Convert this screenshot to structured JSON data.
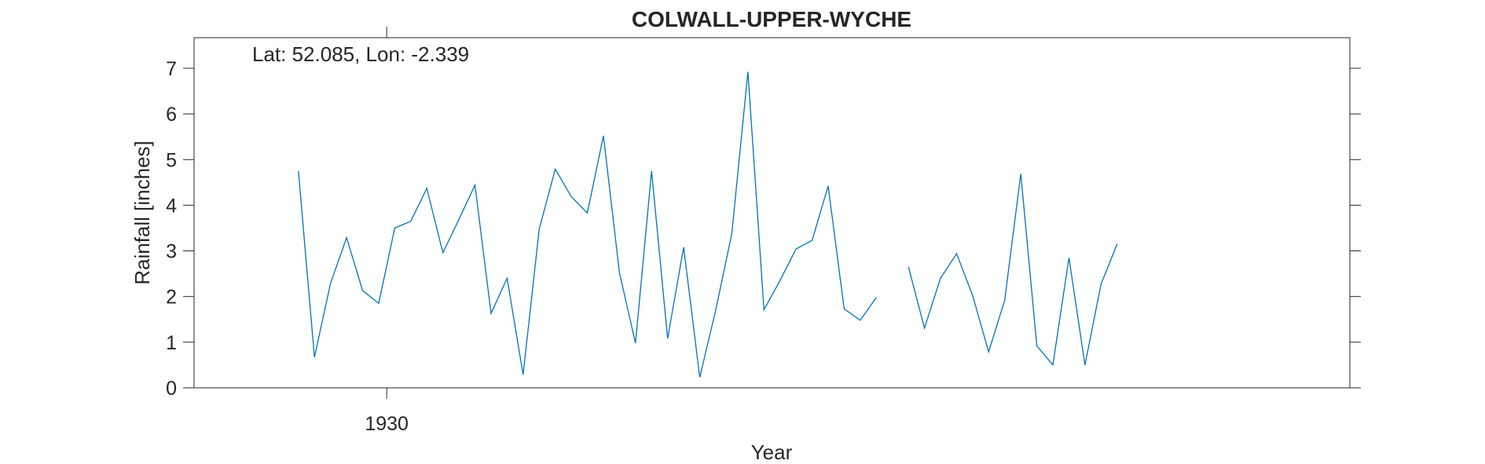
{
  "chart_data": {
    "type": "line",
    "title": "COLWALL-UPPER-WYCHE",
    "annotation": "Lat: 52.085, Lon: -2.339",
    "xlabel": "Year",
    "ylabel": "Rainfall [inches]",
    "xlim": [
      1918,
      1990
    ],
    "xticks": [
      1930
    ],
    "ylim": [
      0,
      7.67
    ],
    "yticks": [
      0,
      1,
      2,
      3,
      4,
      5,
      6,
      7
    ],
    "x": [
      1924.5,
      1925.5,
      1926.5,
      1927.5,
      1928.5,
      1929.5,
      1930.5,
      1931.5,
      1932.5,
      1933.5,
      1934.5,
      1935.5,
      1936.5,
      1937.5,
      1938.5,
      1939.5,
      1940.5,
      1941.5,
      1942.5,
      1943.5,
      1944.5,
      1945.5,
      1946.5,
      1947.5,
      1948.5,
      1949.5,
      1950.5,
      1951.5,
      1952.5,
      1953.5,
      1954.5,
      1955.5,
      1956.5,
      1957.5,
      1958.5,
      1959.5,
      1960.5,
      1961.5,
      1962.5,
      1963.5,
      1964.5,
      1965.5,
      1966.5,
      1967.5,
      1968.5,
      1969.5,
      1970.5,
      1971.5,
      1972.5,
      1973.5,
      1974.5,
      1975.5,
      1976.5
    ],
    "series": [
      {
        "name": "Rainfall",
        "color": "#0072bd",
        "values": [
          4.75,
          0.67,
          2.29,
          3.29,
          2.13,
          1.85,
          3.5,
          3.65,
          4.37,
          2.96,
          3.69,
          4.44,
          1.63,
          2.4,
          0.29,
          3.48,
          4.79,
          4.19,
          3.83,
          5.52,
          2.52,
          0.98,
          4.75,
          1.08,
          3.08,
          0.23,
          1.71,
          3.38,
          6.92,
          1.71,
          2.35,
          3.04,
          3.23,
          4.42,
          1.73,
          1.48,
          1.98,
          null,
          2.65,
          1.31,
          2.4,
          2.94,
          2.02,
          0.79,
          1.92,
          4.69,
          0.92,
          0.5,
          2.85,
          0.5,
          2.27,
          3.15,
          null
        ]
      }
    ]
  }
}
